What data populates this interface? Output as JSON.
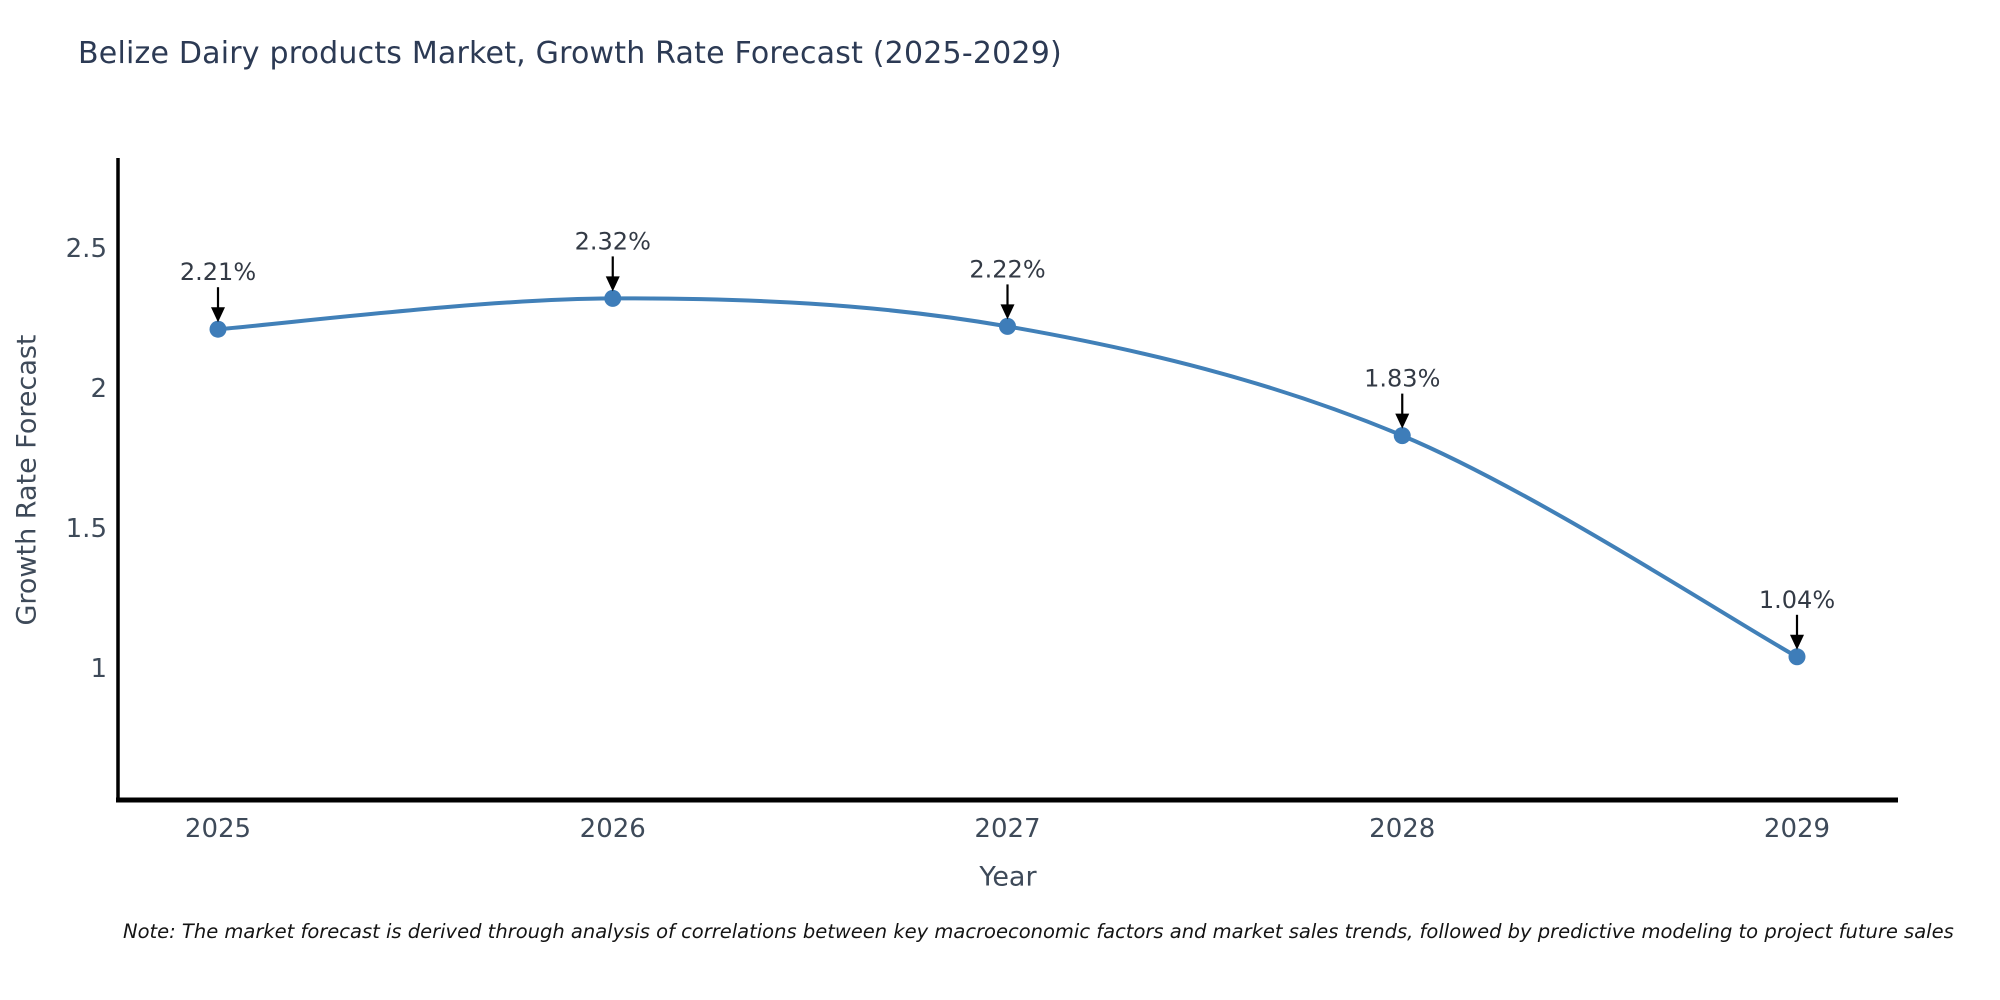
{
  "page": {
    "note": "Note: The market forecast is derived through analysis of correlations between key macroeconomic factors and market sales trends, followed by predictive modeling to project future sales"
  },
  "chart_data": {
    "type": "line",
    "title": "Belize Dairy products Market, Growth Rate Forecast (2025-2029)",
    "xlabel": "Year",
    "ylabel": "Growth Rate Forecast",
    "categories": [
      "2025",
      "2026",
      "2027",
      "2028",
      "2029"
    ],
    "values": [
      2.21,
      2.32,
      2.22,
      1.83,
      1.04
    ],
    "point_labels": [
      "2.21%",
      "2.32%",
      "2.22%",
      "1.83%",
      "1.04%"
    ],
    "yticks": [
      "1",
      "1.5",
      "2",
      "2.5"
    ],
    "ytick_values": [
      1,
      1.5,
      2,
      2.5
    ],
    "ylim": [
      0.53,
      2.82
    ],
    "grid": false,
    "legend": false,
    "smooth": true,
    "colors": {
      "line": "#4180b8",
      "marker": "#3e7db9",
      "axis": "#000000",
      "tick_label": "#3e4a59",
      "title": "#2c3a54",
      "annotation": "#333a45",
      "arrow": "#000000"
    }
  }
}
